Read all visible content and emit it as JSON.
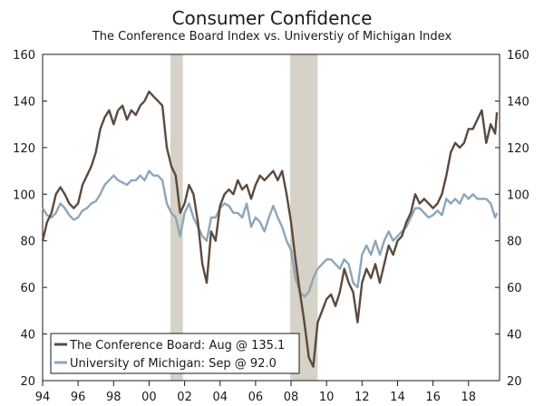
{
  "chart_data": {
    "type": "line",
    "title": "Consumer Confidence",
    "subtitle": "The Conference Board Index vs. Universtiy of Michigan Index",
    "xlabel": "",
    "ylabel": "",
    "x_range": [
      1994,
      2019.75
    ],
    "x_ticks": [
      1994,
      1996,
      1998,
      2000,
      2002,
      2004,
      2006,
      2008,
      2010,
      2012,
      2014,
      2016,
      2018
    ],
    "x_tick_labels": [
      "94",
      "96",
      "98",
      "00",
      "02",
      "04",
      "06",
      "08",
      "10",
      "12",
      "14",
      "16",
      "18"
    ],
    "ylim": [
      20,
      160
    ],
    "y_ticks": [
      20,
      40,
      60,
      80,
      100,
      120,
      140,
      160
    ],
    "y_tick_labels": [
      "20",
      "40",
      "60",
      "80",
      "100",
      "120",
      "140",
      "160"
    ],
    "right_axis": true,
    "grid": false,
    "legend_position": "bottom-left",
    "recessions": [
      [
        2001.2,
        2001.9
      ],
      [
        2007.95,
        2009.5
      ]
    ],
    "recession_color": "#d6d2c7",
    "series": [
      {
        "name": "The Conference Board: Aug @ 135.1",
        "color": "#5b4a3e",
        "x": [
          1994.0,
          1994.25,
          1994.5,
          1994.75,
          1995.0,
          1995.25,
          1995.5,
          1995.75,
          1996.0,
          1996.25,
          1996.5,
          1996.75,
          1997.0,
          1997.25,
          1997.5,
          1997.75,
          1998.0,
          1998.25,
          1998.5,
          1998.75,
          1999.0,
          1999.25,
          1999.5,
          1999.75,
          2000.0,
          2000.25,
          2000.5,
          2000.75,
          2001.0,
          2001.25,
          2001.5,
          2001.75,
          2002.0,
          2002.25,
          2002.5,
          2002.75,
          2003.0,
          2003.25,
          2003.5,
          2003.75,
          2004.0,
          2004.25,
          2004.5,
          2004.75,
          2005.0,
          2005.25,
          2005.5,
          2005.75,
          2006.0,
          2006.25,
          2006.5,
          2006.75,
          2007.0,
          2007.25,
          2007.5,
          2007.75,
          2008.0,
          2008.25,
          2008.5,
          2008.75,
          2009.0,
          2009.25,
          2009.5,
          2009.75,
          2010.0,
          2010.25,
          2010.5,
          2010.75,
          2011.0,
          2011.25,
          2011.5,
          2011.75,
          2012.0,
          2012.25,
          2012.5,
          2012.75,
          2013.0,
          2013.25,
          2013.5,
          2013.75,
          2014.0,
          2014.25,
          2014.5,
          2014.75,
          2015.0,
          2015.25,
          2015.5,
          2015.75,
          2016.0,
          2016.25,
          2016.5,
          2016.75,
          2017.0,
          2017.25,
          2017.5,
          2017.75,
          2018.0,
          2018.25,
          2018.5,
          2018.75,
          2019.0,
          2019.25,
          2019.5,
          2019.6
        ],
        "values": [
          80,
          88,
          92,
          100,
          103,
          100,
          96,
          94,
          96,
          104,
          108,
          112,
          118,
          128,
          133,
          136,
          130,
          136,
          138,
          132,
          136,
          134,
          138,
          140,
          144,
          142,
          140,
          138,
          120,
          112,
          108,
          92,
          96,
          104,
          100,
          88,
          70,
          62,
          84,
          80,
          95,
          100,
          102,
          100,
          106,
          102,
          104,
          98,
          104,
          108,
          106,
          108,
          110,
          106,
          110,
          100,
          88,
          72,
          58,
          45,
          30,
          26,
          45,
          50,
          55,
          57,
          52,
          58,
          68,
          62,
          58,
          45,
          62,
          68,
          64,
          70,
          62,
          70,
          78,
          74,
          80,
          82,
          88,
          92,
          100,
          96,
          98,
          96,
          94,
          96,
          100,
          108,
          118,
          122,
          120,
          122,
          128,
          128,
          132,
          136,
          122,
          130,
          126,
          135.1
        ]
      },
      {
        "name": "University of Michigan: Sep @ 92.0",
        "color": "#8ea5b9",
        "x": [
          1994.0,
          1994.25,
          1994.5,
          1994.75,
          1995.0,
          1995.25,
          1995.5,
          1995.75,
          1996.0,
          1996.25,
          1996.5,
          1996.75,
          1997.0,
          1997.25,
          1997.5,
          1997.75,
          1998.0,
          1998.25,
          1998.5,
          1998.75,
          1999.0,
          1999.25,
          1999.5,
          1999.75,
          2000.0,
          2000.25,
          2000.5,
          2000.75,
          2001.0,
          2001.25,
          2001.5,
          2001.75,
          2002.0,
          2002.25,
          2002.5,
          2002.75,
          2003.0,
          2003.25,
          2003.5,
          2003.75,
          2004.0,
          2004.25,
          2004.5,
          2004.75,
          2005.0,
          2005.25,
          2005.5,
          2005.75,
          2006.0,
          2006.25,
          2006.5,
          2006.75,
          2007.0,
          2007.25,
          2007.5,
          2007.75,
          2008.0,
          2008.25,
          2008.5,
          2008.75,
          2009.0,
          2009.25,
          2009.5,
          2009.75,
          2010.0,
          2010.25,
          2010.5,
          2010.75,
          2011.0,
          2011.25,
          2011.5,
          2011.75,
          2012.0,
          2012.25,
          2012.5,
          2012.75,
          2013.0,
          2013.25,
          2013.5,
          2013.75,
          2014.0,
          2014.25,
          2014.5,
          2014.75,
          2015.0,
          2015.25,
          2015.5,
          2015.75,
          2016.0,
          2016.25,
          2016.5,
          2016.75,
          2017.0,
          2017.25,
          2017.5,
          2017.75,
          2018.0,
          2018.25,
          2018.5,
          2018.75,
          2019.0,
          2019.25,
          2019.5,
          2019.6
        ],
        "values": [
          94,
          91,
          90,
          92,
          96,
          94,
          91,
          89,
          90,
          93,
          94,
          96,
          97,
          100,
          104,
          106,
          108,
          106,
          105,
          104,
          106,
          106,
          108,
          106,
          110,
          108,
          108,
          106,
          96,
          92,
          90,
          82,
          92,
          96,
          90,
          86,
          82,
          80,
          90,
          90,
          94,
          96,
          95,
          92,
          92,
          90,
          96,
          86,
          90,
          88,
          84,
          90,
          95,
          90,
          86,
          80,
          76,
          64,
          58,
          56,
          58,
          64,
          68,
          70,
          72,
          72,
          70,
          68,
          72,
          70,
          62,
          60,
          74,
          78,
          74,
          80,
          74,
          80,
          84,
          80,
          82,
          84,
          86,
          90,
          94,
          94,
          92,
          90,
          91,
          93,
          91,
          98,
          96,
          98,
          96,
          100,
          98,
          100,
          98,
          98,
          98,
          96,
          90,
          92.0
        ]
      }
    ]
  }
}
